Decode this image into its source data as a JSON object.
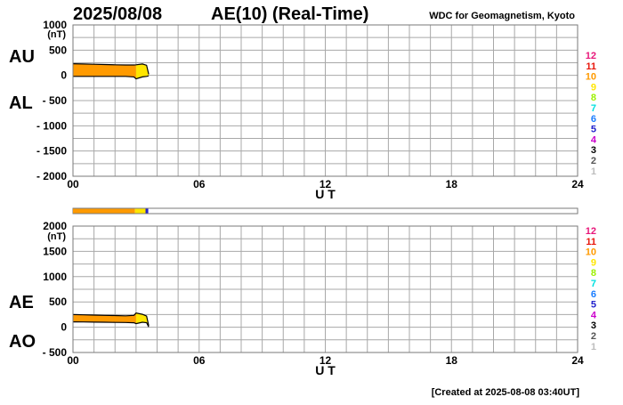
{
  "header": {
    "date": "2025/08/08",
    "title": "AE(10) (Real-Time)",
    "source": "WDC for Geomagnetism, Kyoto"
  },
  "footer": {
    "created": "[Created at 2025-08-08 03:40UT]"
  },
  "station_count_legend": {
    "labels": [
      "12",
      "11",
      "10",
      "9",
      "8",
      "7",
      "6",
      "5",
      "4",
      "3",
      "2",
      "1"
    ],
    "colors": [
      "#e8177a",
      "#e8170c",
      "#ff9a00",
      "#ffe600",
      "#9cf000",
      "#00e0e0",
      "#1a7dff",
      "#2222cc",
      "#cc00cc",
      "#000000",
      "#555555",
      "#bdbdbd"
    ]
  },
  "coverage_bar": {
    "xlim": [
      0,
      24
    ],
    "segments": [
      {
        "from": 0.0,
        "to": 2.95,
        "stations": 10,
        "color": "#ff9a00"
      },
      {
        "from": 2.95,
        "to": 3.45,
        "stations": 9,
        "color": "#ffe600"
      },
      {
        "from": 3.45,
        "to": 3.58,
        "stations": 5,
        "color": "#2222cc"
      }
    ]
  },
  "chart_data": [
    {
      "type": "area",
      "panel": "AU/AL",
      "side_labels": [
        "AU",
        "AL"
      ],
      "ylabel": "(nT)",
      "ylim": [
        -2000,
        1000
      ],
      "yticks": [
        1000,
        500,
        0,
        -500,
        -1000,
        -1500,
        -2000
      ],
      "xlabel": "U T",
      "xlim": [
        0,
        24
      ],
      "xtick_labels": [
        "00",
        "06",
        "12",
        "18",
        "24"
      ],
      "grid": true,
      "series": [
        {
          "name": "AU",
          "x": [
            0.0,
            0.5,
            1.0,
            1.5,
            2.0,
            2.5,
            2.9,
            3.0,
            3.3,
            3.5,
            3.6
          ],
          "values": [
            230,
            225,
            220,
            215,
            210,
            205,
            205,
            210,
            225,
            200,
            20
          ]
        },
        {
          "name": "AL",
          "x": [
            0.0,
            0.5,
            1.0,
            1.5,
            2.0,
            2.5,
            2.9,
            3.0,
            3.3,
            3.5,
            3.6
          ],
          "values": [
            -20,
            -20,
            -20,
            -20,
            -20,
            -20,
            -30,
            -70,
            -30,
            -20,
            -10
          ]
        }
      ],
      "fill_segments": [
        {
          "from": 0.0,
          "to": 3.0,
          "color": "#ff9a00"
        },
        {
          "from": 3.0,
          "to": 3.6,
          "color": "#ffe600"
        }
      ]
    },
    {
      "type": "area",
      "panel": "AE/AO",
      "side_labels": [
        "AE",
        "AO"
      ],
      "ylabel": "(nT)",
      "ylim": [
        -500,
        2000
      ],
      "yticks": [
        2000,
        1500,
        1000,
        500,
        0,
        -500
      ],
      "xlabel": "U T",
      "xlim": [
        0,
        24
      ],
      "xtick_labels": [
        "00",
        "06",
        "12",
        "18",
        "24"
      ],
      "grid": true,
      "series": [
        {
          "name": "AE",
          "x": [
            0.0,
            0.5,
            1.0,
            1.5,
            2.0,
            2.5,
            2.9,
            3.0,
            3.3,
            3.5,
            3.6
          ],
          "values": [
            250,
            245,
            240,
            235,
            230,
            225,
            235,
            280,
            255,
            220,
            30
          ]
        },
        {
          "name": "AO",
          "x": [
            0.0,
            0.5,
            1.0,
            1.5,
            2.0,
            2.5,
            2.9,
            3.0,
            3.3,
            3.5,
            3.6
          ],
          "values": [
            105,
            103,
            100,
            98,
            95,
            93,
            88,
            70,
            98,
            90,
            5
          ]
        }
      ],
      "fill_segments": [
        {
          "from": 0.0,
          "to": 3.0,
          "color": "#ff9a00"
        },
        {
          "from": 3.0,
          "to": 3.6,
          "color": "#ffe600"
        }
      ]
    }
  ]
}
